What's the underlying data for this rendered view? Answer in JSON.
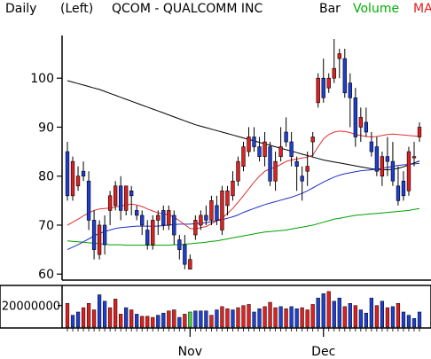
{
  "header": {
    "period": "Daily",
    "axis_side": "(Left)",
    "ticker_title": "QCOM - QUALCOMM INC",
    "legend_bar": "Bar",
    "legend_volume": "Volume",
    "legend_ma": "MA"
  },
  "colors": {
    "up": "#e02020",
    "down": "#1f3fd0",
    "ma_short": "#e03030",
    "ma_mid": "#2030c0",
    "ma_long": "#000000",
    "volume_ma": "#00a000",
    "volume_highlight": "#40d040"
  },
  "chart_data": [
    {
      "type": "candlestick",
      "title": "QCOM - QUALCOMM INC",
      "period": "Daily",
      "y_ticks": [
        60,
        70,
        80,
        90,
        100
      ],
      "ylim": [
        59.5,
        108
      ],
      "x_tick_labels": [
        {
          "label": "Nov",
          "index": 23
        },
        {
          "label": "Dec",
          "index": 48
        }
      ],
      "ohlc": [
        [
          85,
          87,
          75,
          76
        ],
        [
          76,
          84,
          75,
          83
        ],
        [
          78,
          82,
          77,
          80
        ],
        [
          81,
          83,
          79,
          80
        ],
        [
          79,
          81,
          69,
          71
        ],
        [
          71,
          73,
          63,
          65
        ],
        [
          64,
          71,
          63,
          70
        ],
        [
          70,
          72,
          64,
          66
        ],
        [
          73,
          77,
          70,
          76
        ],
        [
          74,
          79,
          73,
          78
        ],
        [
          78,
          80,
          71,
          73
        ],
        [
          73,
          78,
          72,
          78
        ],
        [
          77,
          78,
          72,
          76
        ],
        [
          73,
          74,
          71,
          72
        ],
        [
          72,
          73,
          68,
          70
        ],
        [
          69,
          71,
          65,
          66
        ],
        [
          66,
          72,
          65,
          71
        ],
        [
          71,
          73,
          68,
          72
        ],
        [
          73,
          74,
          69,
          70
        ],
        [
          70,
          74,
          69,
          73
        ],
        [
          72,
          73,
          66,
          68
        ],
        [
          67,
          68,
          63,
          65
        ],
        [
          66,
          68,
          61,
          62
        ],
        [
          61,
          64,
          61,
          63
        ],
        [
          68,
          72,
          67,
          71
        ],
        [
          70,
          73,
          69,
          72
        ],
        [
          72,
          74,
          70,
          71
        ],
        [
          71,
          76,
          70,
          75
        ],
        [
          74,
          76,
          70,
          71
        ],
        [
          69,
          78,
          68,
          77
        ],
        [
          74,
          78,
          72,
          77
        ],
        [
          76,
          81,
          75,
          79
        ],
        [
          79,
          84,
          78,
          83
        ],
        [
          82,
          87,
          81,
          86
        ],
        [
          85,
          90,
          84,
          88
        ],
        [
          88,
          90,
          85,
          86
        ],
        [
          86,
          88,
          83,
          84
        ],
        [
          84,
          89,
          82,
          87
        ],
        [
          86,
          87,
          78,
          79
        ],
        [
          79,
          85,
          77,
          83
        ],
        [
          84,
          90,
          83,
          86
        ],
        [
          89,
          92,
          86,
          87
        ],
        [
          87,
          89,
          82,
          84
        ],
        [
          83,
          84,
          77,
          82
        ],
        [
          80,
          82,
          75,
          79
        ],
        [
          81,
          85,
          78,
          82
        ],
        [
          87,
          89,
          84,
          88
        ],
        [
          95,
          101,
          94,
          100
        ],
        [
          100,
          104,
          95,
          96
        ],
        [
          98,
          101,
          97,
          100
        ],
        [
          100,
          108,
          99,
          102
        ],
        [
          104,
          106,
          100,
          105
        ],
        [
          104,
          106,
          96,
          97
        ],
        [
          99,
          101,
          90,
          96
        ],
        [
          96,
          98,
          86,
          88
        ],
        [
          90,
          94,
          87,
          92
        ],
        [
          91,
          94,
          88,
          89
        ],
        [
          87,
          89,
          84,
          85
        ],
        [
          86,
          88,
          80,
          81
        ],
        [
          80,
          85,
          78,
          84
        ],
        [
          84,
          88,
          80,
          83
        ],
        [
          83,
          87,
          78,
          79
        ],
        [
          78,
          82,
          74,
          75
        ],
        [
          79,
          81,
          75,
          76
        ],
        [
          77,
          86,
          76,
          85
        ],
        [
          84,
          87,
          82,
          84
        ],
        [
          88,
          91,
          87,
          90
        ]
      ],
      "ma_short": [
        70,
        70.6,
        71.2,
        71.9,
        72.5,
        73,
        73.3,
        73.4,
        73.5,
        73.7,
        73.9,
        74.1,
        74.3,
        74.1,
        73.8,
        73.3,
        72.9,
        72.5,
        72.3,
        72.1,
        71.6,
        70.9,
        70.1,
        69.3,
        69.2,
        69.5,
        69.7,
        70.3,
        70.9,
        71.4,
        72.4,
        73.4,
        74.7,
        76,
        77.4,
        78.8,
        80,
        81,
        81.5,
        81.8,
        82.4,
        83,
        83.3,
        83.5,
        83.7,
        83.9,
        84.3,
        86,
        87.6,
        88.5,
        89,
        89.2,
        89.1,
        88.9,
        88.5,
        88.3,
        88.1,
        88,
        88.1,
        88.3,
        88.5,
        88.6,
        88.5,
        88.4,
        88.3,
        88.2,
        88.1
      ],
      "ma_mid": [
        65,
        65.5,
        66,
        66.6,
        67.2,
        67.8,
        68.3,
        68.7,
        69,
        69.3,
        69.5,
        69.6,
        69.7,
        69.8,
        69.8,
        69.8,
        69.8,
        69.8,
        69.9,
        70,
        70.1,
        70.2,
        70.2,
        70.2,
        70.3,
        70.4,
        70.5,
        70.7,
        70.9,
        71.1,
        71.4,
        71.7,
        72.1,
        72.6,
        73,
        73.4,
        73.8,
        74.2,
        74.5,
        74.8,
        75.1,
        75.4,
        75.7,
        76.1,
        76.5,
        77,
        77.6,
        78.2,
        78.8,
        79.3,
        79.8,
        80.2,
        80.5,
        80.7,
        80.9,
        81.1,
        81.2,
        81.3,
        81.4,
        81.6,
        81.8,
        82,
        82.2,
        82.3,
        82.4,
        82.5,
        82.6
      ],
      "ma_long": [
        99.5,
        99.2,
        98.9,
        98.6,
        98.3,
        98,
        97.7,
        97.3,
        96.9,
        96.5,
        96.1,
        95.7,
        95.3,
        94.9,
        94.5,
        94.1,
        93.7,
        93.3,
        92.9,
        92.5,
        92.1,
        91.7,
        91.3,
        90.9,
        90.5,
        90.2,
        89.9,
        89.6,
        89.3,
        89,
        88.7,
        88.4,
        88.1,
        87.8,
        87.5,
        87.2,
        86.9,
        86.6,
        86.3,
        86,
        85.7,
        85.4,
        85.1,
        84.8,
        84.5,
        84.2,
        83.9,
        83.6,
        83.3,
        83.1,
        82.9,
        82.7,
        82.5,
        82.3,
        82.1,
        81.9,
        81.7,
        81.5,
        81.4,
        81.3,
        81.3,
        81.4,
        81.6,
        81.9,
        82.3,
        82.7,
        83.1
      ],
      "ma_volume": [
        66.8,
        66.7,
        66.6,
        66.5,
        66.4,
        66.3,
        66.2,
        66.1,
        66,
        66,
        66,
        65.9,
        65.9,
        65.9,
        65.9,
        65.9,
        65.9,
        65.9,
        65.9,
        65.9,
        66,
        66,
        66.1,
        66.2,
        66.3,
        66.4,
        66.5,
        66.7,
        66.8,
        67,
        67.2,
        67.4,
        67.6,
        67.8,
        68,
        68.2,
        68.4,
        68.6,
        68.7,
        68.8,
        68.9,
        69,
        69.2,
        69.4,
        69.6,
        69.8,
        70,
        70.3,
        70.6,
        70.9,
        71.2,
        71.4,
        71.6,
        71.8,
        72,
        72.1,
        72.2,
        72.3,
        72.4,
        72.5,
        72.6,
        72.7,
        72.8,
        72.9,
        73,
        73.2,
        73.4
      ]
    },
    {
      "type": "bar",
      "title": "Volume",
      "y_tick_labels": [
        "20000000"
      ],
      "y_tick_values": [
        20000000
      ],
      "ylim": [
        0,
        37000000
      ],
      "values": [
        22000000,
        11000000,
        14000000,
        18000000,
        22000000,
        16000000,
        30000000,
        24000000,
        18000000,
        26000000,
        12000000,
        18000000,
        16000000,
        12000000,
        10000000,
        10000000,
        9000000,
        11000000,
        13000000,
        15000000,
        16000000,
        9000000,
        12000000,
        14000000,
        15000000,
        15000000,
        15000000,
        11000000,
        16000000,
        19000000,
        17000000,
        16000000,
        18000000,
        20000000,
        21000000,
        14000000,
        17000000,
        19000000,
        23000000,
        18000000,
        19000000,
        17000000,
        19000000,
        17000000,
        18000000,
        16000000,
        21000000,
        27000000,
        31000000,
        33000000,
        24000000,
        27000000,
        19000000,
        22000000,
        20000000,
        16000000,
        13000000,
        27000000,
        20000000,
        24000000,
        18000000,
        19000000,
        22000000,
        14000000,
        11000000,
        8000000,
        14000000
      ],
      "up_flags": [
        1,
        0,
        0,
        1,
        1,
        1,
        0,
        0,
        1,
        1,
        1,
        0,
        1,
        0,
        1,
        1,
        1,
        0,
        0,
        1,
        1,
        0,
        1,
        0,
        0,
        0,
        0,
        1,
        0,
        1,
        1,
        0,
        1,
        1,
        1,
        0,
        0,
        1,
        1,
        1,
        0,
        1,
        0,
        0,
        1,
        1,
        1,
        0,
        0,
        1,
        0,
        0,
        1,
        0,
        1,
        0,
        0,
        0,
        1,
        0,
        1,
        0,
        1,
        0,
        0,
        0,
        0
      ],
      "highlight_index": 23
    }
  ]
}
